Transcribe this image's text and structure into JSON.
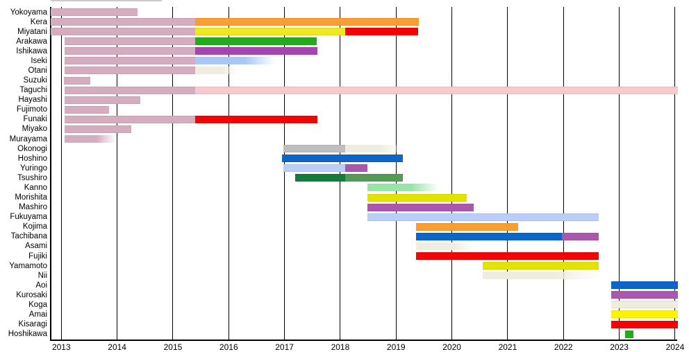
{
  "chart_data": {
    "type": "bar",
    "subtype": "gantt-timeline",
    "title": "",
    "xlabel": "",
    "ylabel": "",
    "grid": "vertical-yearly",
    "legend": "none",
    "x_axis": {
      "years": [
        2013,
        2014,
        2015,
        2016,
        2017,
        2018,
        2019,
        2020,
        2021,
        2022,
        2023,
        2024
      ],
      "visible_range_start": 2012.81,
      "visible_range_end": 2024.05,
      "last_label_clipped": "2024"
    },
    "palette": {
      "rose": "#D5ADBF",
      "pink_light": "#F9C9CE",
      "orange": "#FA9E33",
      "yellow": "#EDE820",
      "yellow_dull": "#E2E300",
      "yellow_bright": "#FCF202",
      "red": "#F50303",
      "green": "#23AB1E",
      "green_dark": "#117D3D",
      "green_med": "#559B57",
      "green_light": "#96E4A7",
      "purple": "#A546B0",
      "orchid": "#A958AE",
      "blue": "#0D65C8",
      "blue_light": "#A9C6F5",
      "periwinkle": "#BACFF7",
      "eggshell": "#EFEDDF",
      "gray": "#BFBFBF"
    },
    "rows": [
      {
        "name": "Yokoyama",
        "segments": [
          {
            "c": "rose",
            "s": 2012.81,
            "e": 2014.37
          }
        ]
      },
      {
        "name": "Kera",
        "segments": [
          {
            "c": "rose",
            "s": 2012.81,
            "e": 2015.4
          },
          {
            "c": "orange",
            "s": 2015.4,
            "e": 2019.41
          }
        ]
      },
      {
        "name": "Miyatani",
        "segments": [
          {
            "c": "rose",
            "s": 2012.81,
            "e": 2015.4
          },
          {
            "c": "yellow",
            "s": 2015.4,
            "e": 2018.09
          },
          {
            "c": "red",
            "s": 2018.09,
            "e": 2019.4
          }
        ]
      },
      {
        "name": "Arakawa",
        "segments": [
          {
            "c": "rose",
            "s": 2013.06,
            "e": 2015.4
          },
          {
            "c": "green",
            "s": 2015.4,
            "e": 2017.58
          }
        ]
      },
      {
        "name": "Ishikawa",
        "segments": [
          {
            "c": "rose",
            "s": 2013.06,
            "e": 2015.4
          },
          {
            "c": "purple",
            "s": 2015.4,
            "e": 2017.59
          }
        ]
      },
      {
        "name": "Iseki",
        "segments": [
          {
            "c": "rose",
            "s": 2013.06,
            "e": 2015.4
          },
          {
            "c": "blue_light",
            "s": 2015.4,
            "e": 2016.83,
            "fade": true
          }
        ]
      },
      {
        "name": "Otani",
        "segments": [
          {
            "c": "rose",
            "s": 2013.06,
            "e": 2015.4
          },
          {
            "c": "eggshell",
            "s": 2015.4,
            "e": 2016.17,
            "fade": true
          }
        ]
      },
      {
        "name": "Suzuki",
        "segments": [
          {
            "c": "rose",
            "s": 2013.05,
            "e": 2013.52
          }
        ]
      },
      {
        "name": "Taguchi",
        "segments": [
          {
            "c": "rose",
            "s": 2013.06,
            "e": 2015.4
          },
          {
            "c": "pink_light",
            "s": 2015.4,
            "e": 2024.05
          }
        ]
      },
      {
        "name": "Hayashi",
        "segments": [
          {
            "c": "rose",
            "s": 2013.06,
            "e": 2014.41
          }
        ]
      },
      {
        "name": "Fujimoto",
        "segments": [
          {
            "c": "rose",
            "s": 2013.06,
            "e": 2013.85
          }
        ]
      },
      {
        "name": "Funaki",
        "segments": [
          {
            "c": "rose",
            "s": 2013.06,
            "e": 2015.4
          },
          {
            "c": "red",
            "s": 2015.4,
            "e": 2017.59
          }
        ]
      },
      {
        "name": "Miyako",
        "segments": [
          {
            "c": "rose",
            "s": 2013.06,
            "e": 2014.25
          }
        ]
      },
      {
        "name": "Murayama",
        "segments": [
          {
            "c": "rose",
            "s": 2013.06,
            "e": 2013.98,
            "fade": true
          }
        ]
      },
      {
        "name": "Okonogi",
        "segments": [
          {
            "c": "gray",
            "s": 2016.98,
            "e": 2018.09
          },
          {
            "c": "eggshell",
            "s": 2018.09,
            "e": 2019.1,
            "fade": true
          }
        ]
      },
      {
        "name": "Hoshino",
        "segments": [
          {
            "c": "blue",
            "s": 2016.96,
            "e": 2019.12
          }
        ]
      },
      {
        "name": "Yuringo",
        "segments": [
          {
            "c": "periwinkle",
            "s": 2016.98,
            "e": 2018.09
          },
          {
            "c": "orchid",
            "s": 2018.09,
            "e": 2018.49
          }
        ]
      },
      {
        "name": "Tsushiro",
        "segments": [
          {
            "c": "green_dark",
            "s": 2017.19,
            "e": 2018.09
          },
          {
            "c": "green_med",
            "s": 2018.09,
            "e": 2019.12
          }
        ]
      },
      {
        "name": "Kanno",
        "segments": [
          {
            "c": "green_light",
            "s": 2018.49,
            "e": 2019.75,
            "fade": true
          }
        ]
      },
      {
        "name": "Morishita",
        "segments": [
          {
            "c": "yellow_dull",
            "s": 2018.49,
            "e": 2020.27
          }
        ]
      },
      {
        "name": "Mashiro",
        "segments": [
          {
            "c": "orchid",
            "s": 2018.49,
            "e": 2020.39
          }
        ]
      },
      {
        "name": "Fukuyama",
        "segments": [
          {
            "c": "periwinkle",
            "s": 2018.49,
            "e": 2022.63
          }
        ]
      },
      {
        "name": "Kojima",
        "segments": [
          {
            "c": "orange",
            "s": 2019.36,
            "e": 2021.19
          }
        ]
      },
      {
        "name": "Tachibana",
        "segments": [
          {
            "c": "blue",
            "s": 2019.36,
            "e": 2021.97
          },
          {
            "c": "orchid",
            "s": 2021.97,
            "e": 2022.63
          }
        ]
      },
      {
        "name": "Asami",
        "segments": [
          {
            "c": "eggshell",
            "s": 2019.36,
            "e": 2020.42,
            "fade": true
          }
        ]
      },
      {
        "name": "Fujiki",
        "segments": [
          {
            "c": "red",
            "s": 2019.36,
            "e": 2022.63
          }
        ]
      },
      {
        "name": "Yamamoto",
        "segments": [
          {
            "c": "yellow_dull",
            "s": 2020.55,
            "e": 2022.63
          }
        ]
      },
      {
        "name": "Nii",
        "segments": [
          {
            "c": "eggshell",
            "s": 2020.55,
            "e": 2022.63,
            "fade": true
          }
        ]
      },
      {
        "name": "Aoi",
        "segments": [
          {
            "c": "blue",
            "s": 2022.86,
            "e": 2024.05
          }
        ]
      },
      {
        "name": "Kurosaki",
        "segments": [
          {
            "c": "orchid",
            "s": 2022.86,
            "e": 2024.05
          }
        ]
      },
      {
        "name": "Koga",
        "segments": [
          {
            "c": "eggshell",
            "s": 2022.86,
            "e": 2024.05
          }
        ]
      },
      {
        "name": "Amai",
        "segments": [
          {
            "c": "yellow_bright",
            "s": 2022.86,
            "e": 2024.05
          }
        ]
      },
      {
        "name": "Kisaragi",
        "segments": [
          {
            "c": "red",
            "s": 2022.86,
            "e": 2024.05
          }
        ]
      },
      {
        "name": "Hoshikawa",
        "segments": [
          {
            "c": "green",
            "s": 2023.11,
            "e": 2023.25
          }
        ]
      }
    ]
  }
}
